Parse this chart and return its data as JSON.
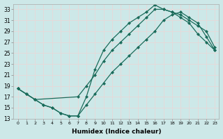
{
  "xlabel": "Humidex (Indice chaleur)",
  "bg_color": "#cde8e8",
  "grid_color": "#e8d8d8",
  "line_color": "#1a6b5a",
  "xlim": [
    -0.5,
    23.5
  ],
  "ylim": [
    13,
    34
  ],
  "xticks": [
    0,
    1,
    2,
    3,
    4,
    5,
    6,
    7,
    8,
    9,
    10,
    11,
    12,
    13,
    14,
    15,
    16,
    17,
    18,
    19,
    20,
    21,
    22,
    23
  ],
  "yticks": [
    13,
    15,
    17,
    19,
    21,
    23,
    25,
    27,
    29,
    31,
    33
  ],
  "curve1_x": [
    0,
    1,
    2,
    3,
    4,
    5,
    6,
    7,
    8,
    9,
    10,
    11,
    12,
    13,
    14,
    15,
    16,
    17,
    18,
    19,
    20,
    21,
    22,
    23
  ],
  "curve1_y": [
    18.5,
    17.5,
    16.5,
    15.5,
    15.0,
    14.0,
    13.5,
    13.5,
    17.0,
    22.0,
    25.5,
    27.5,
    29.0,
    30.5,
    31.5,
    32.5,
    33.8,
    33.0,
    32.5,
    31.5,
    30.5,
    28.5,
    27.0,
    25.5
  ],
  "curve2_x": [
    0,
    1,
    2,
    7,
    8,
    9,
    10,
    11,
    12,
    13,
    14,
    15,
    16,
    17,
    18,
    19,
    20,
    21,
    22,
    23
  ],
  "curve2_y": [
    18.5,
    17.5,
    16.5,
    17.0,
    19.0,
    21.0,
    23.5,
    25.5,
    27.0,
    28.5,
    30.0,
    31.5,
    33.0,
    33.0,
    32.5,
    32.0,
    31.0,
    30.0,
    29.0,
    26.0
  ],
  "curve3_x": [
    0,
    1,
    2,
    3,
    4,
    5,
    6,
    7,
    8,
    9,
    10,
    11,
    12,
    13,
    14,
    15,
    16,
    17,
    18,
    19,
    20,
    21,
    22,
    23
  ],
  "curve3_y": [
    18.5,
    17.5,
    16.5,
    15.5,
    15.0,
    14.0,
    13.5,
    13.5,
    15.5,
    17.5,
    19.5,
    21.5,
    23.0,
    24.5,
    26.0,
    27.5,
    29.0,
    31.0,
    32.0,
    32.5,
    31.5,
    30.5,
    28.0,
    25.5
  ]
}
